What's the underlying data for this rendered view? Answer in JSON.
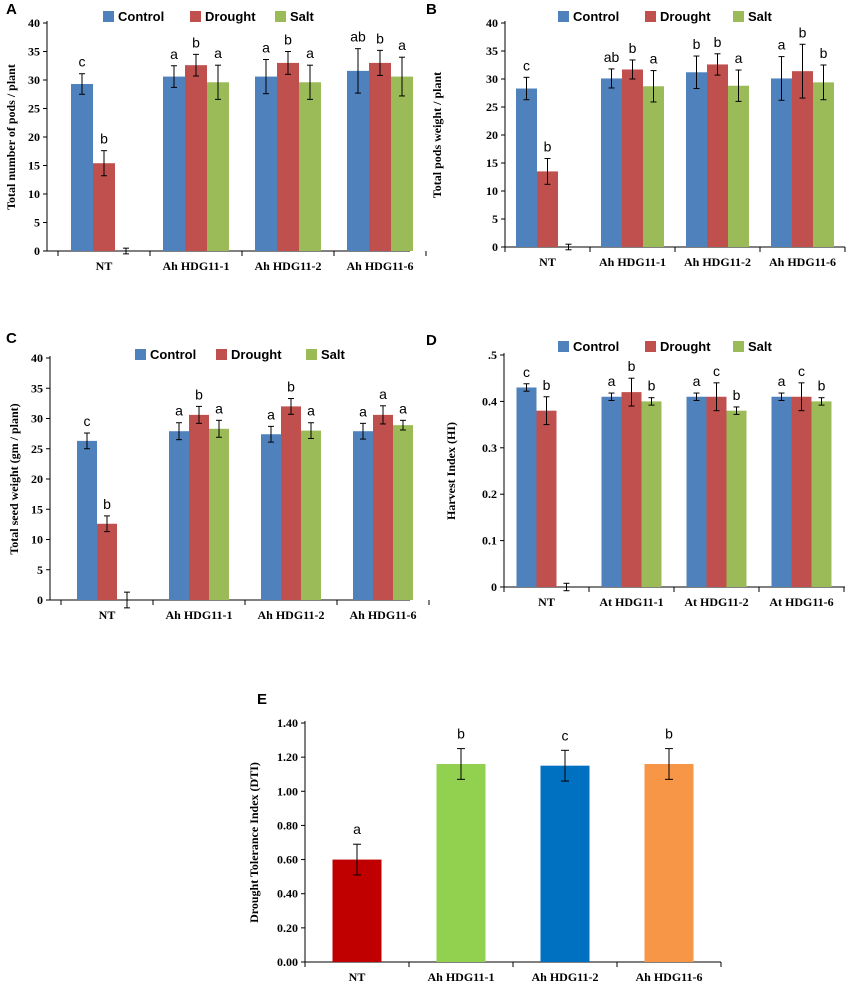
{
  "legend": [
    "Control",
    "Drought",
    "Salt"
  ],
  "colors": {
    "control": "#4F81BD",
    "drought": "#C0504D",
    "salt": "#9BBB59",
    "e_nt": "#C00000",
    "e_hdg1": "#92D050",
    "e_hdg2": "#0070C0",
    "e_hdg6": "#F79646"
  },
  "chart_data": [
    {
      "panel": "A",
      "type": "bar",
      "ylabel": "Total number of pods / plant",
      "ylim": [
        0,
        40
      ],
      "yticks": [
        "0",
        "5",
        "10",
        "15",
        "20",
        "25",
        "30",
        "35",
        "40"
      ],
      "categories": [
        "NT",
        "Ah HDG11-1",
        "Ah HDG11-2",
        "Ah HDG11-6"
      ],
      "series": [
        {
          "name": "Control",
          "values": [
            29.3,
            30.6,
            30.6,
            31.6
          ],
          "errors": [
            1.8,
            1.9,
            3.0,
            3.9
          ],
          "labels": [
            "c",
            "a",
            "a",
            "ab"
          ]
        },
        {
          "name": "Drought",
          "values": [
            15.4,
            32.6,
            33.0,
            33.0
          ],
          "errors": [
            2.2,
            1.9,
            2.0,
            2.2
          ],
          "labels": [
            "b",
            "b",
            "b",
            "b"
          ]
        },
        {
          "name": "Salt",
          "values": [
            0,
            29.6,
            29.6,
            30.6
          ],
          "errors": [
            0.5,
            3.0,
            3.0,
            3.4
          ],
          "labels": [
            "",
            "a",
            "a",
            "a"
          ]
        }
      ]
    },
    {
      "panel": "B",
      "type": "bar",
      "ylabel": "Total pods weight / plant",
      "ylim": [
        0,
        40
      ],
      "yticks": [
        "0",
        "5",
        "10",
        "15",
        "20",
        "25",
        "30",
        "35",
        "40"
      ],
      "categories": [
        "NT",
        "Ah HDG11-1",
        "Ah HDG11-2",
        "Ah HDG11-6"
      ],
      "series": [
        {
          "name": "Control",
          "values": [
            28.3,
            30.1,
            31.2,
            30.1
          ],
          "errors": [
            2.0,
            1.7,
            2.9,
            3.9
          ],
          "labels": [
            "c",
            "ab",
            "b",
            "a"
          ]
        },
        {
          "name": "Drought",
          "values": [
            13.5,
            31.7,
            32.6,
            31.4
          ],
          "errors": [
            2.3,
            1.7,
            1.9,
            4.8
          ],
          "labels": [
            "b",
            "b",
            "b",
            "b"
          ]
        },
        {
          "name": "Salt",
          "values": [
            0,
            28.7,
            28.8,
            29.4
          ],
          "errors": [
            0.5,
            2.8,
            2.8,
            3.1
          ],
          "labels": [
            "",
            "a",
            "a",
            "b"
          ]
        }
      ]
    },
    {
      "panel": "C",
      "type": "bar",
      "ylabel": "Total seed weight  (gm / plant)",
      "ylim": [
        0,
        40
      ],
      "yticks": [
        "0",
        "5",
        "10",
        "15",
        "20",
        "25",
        "30",
        "35",
        "40"
      ],
      "categories": [
        "NT",
        "Ah HDG11-1",
        "Ah HDG11-2",
        "Ah HDG11-6"
      ],
      "series": [
        {
          "name": "Control",
          "values": [
            26.3,
            27.9,
            27.4,
            27.9
          ],
          "errors": [
            1.3,
            1.4,
            1.3,
            1.3
          ],
          "labels": [
            "c",
            "a",
            "a",
            "a"
          ]
        },
        {
          "name": "Drought",
          "values": [
            12.6,
            30.6,
            32.0,
            30.6
          ],
          "errors": [
            1.3,
            1.4,
            1.3,
            1.5
          ],
          "labels": [
            "b",
            "b",
            "b",
            "a"
          ]
        },
        {
          "name": "Salt",
          "values": [
            0,
            28.3,
            28.0,
            28.9
          ],
          "errors": [
            1.3,
            1.4,
            1.3,
            0.8
          ],
          "labels": [
            "",
            "a",
            "a",
            "a"
          ]
        }
      ]
    },
    {
      "panel": "D",
      "type": "bar",
      "ylabel": "Harvest Index (HI)",
      "ylim": [
        0,
        0.5
      ],
      "yticks": [
        "0",
        "0.1",
        "0.2",
        "0.3",
        "0.4",
        ".5"
      ],
      "categories": [
        "NT",
        "At HDG11-1",
        "At HDG11-2",
        "At HDG11-6"
      ],
      "series": [
        {
          "name": "Control",
          "values": [
            0.43,
            0.41,
            0.41,
            0.41
          ],
          "errors": [
            0.008,
            0.008,
            0.008,
            0.008
          ],
          "labels": [
            "c",
            "a",
            "a",
            "a"
          ]
        },
        {
          "name": "Drought",
          "values": [
            0.38,
            0.42,
            0.41,
            0.41
          ],
          "errors": [
            0.03,
            0.03,
            0.03,
            0.03
          ],
          "labels": [
            "b",
            "b",
            "c",
            "c"
          ]
        },
        {
          "name": "Salt",
          "values": [
            0,
            0.4,
            0.38,
            0.4
          ],
          "errors": [
            0.008,
            0.008,
            0.008,
            0.008
          ],
          "labels": [
            "",
            "b",
            "b",
            "b"
          ]
        }
      ]
    },
    {
      "panel": "E",
      "type": "bar",
      "ylabel": "Drought Tolerance Index (DTI)",
      "ylim": [
        0,
        1.4
      ],
      "yticks": [
        "0.00",
        "0.20",
        "0.40",
        "0.60",
        "0.80",
        "1.00",
        "1.20",
        "1.40"
      ],
      "categories": [
        "NT",
        "Ah HDG11-1",
        "Ah HDG11-2",
        "Ah HDG11-6"
      ],
      "values": [
        0.6,
        1.16,
        1.15,
        1.16
      ],
      "errors": [
        0.09,
        0.09,
        0.09,
        0.09
      ],
      "labels": [
        "a",
        "b",
        "c",
        "b"
      ]
    }
  ]
}
